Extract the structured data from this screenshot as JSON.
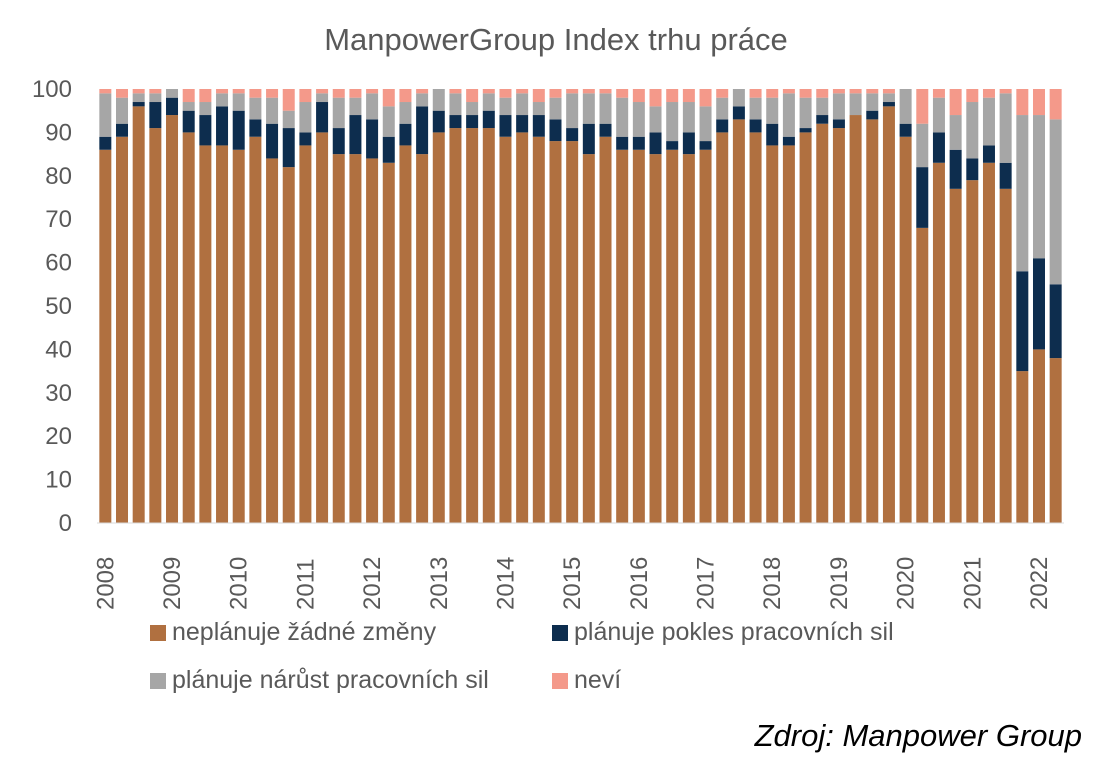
{
  "chart_data": {
    "type": "bar",
    "stacked": true,
    "title": "ManpowerGroup Index trhu práce",
    "ylim": [
      0,
      100
    ],
    "yticks": [
      0,
      10,
      20,
      30,
      40,
      50,
      60,
      70,
      80,
      90,
      100
    ],
    "xticks": [
      "2008",
      "2009",
      "2010",
      "2011",
      "2012",
      "2013",
      "2014",
      "2015",
      "2016",
      "2017",
      "2018",
      "2019",
      "2020",
      "2021",
      "2022"
    ],
    "categories": [
      "2008Q1",
      "2008Q2",
      "2008Q3",
      "2008Q4",
      "2009Q1",
      "2009Q2",
      "2009Q3",
      "2009Q4",
      "2010Q1",
      "2010Q2",
      "2010Q3",
      "2010Q4",
      "2011Q1",
      "2011Q2",
      "2011Q3",
      "2011Q4",
      "2012Q1",
      "2012Q2",
      "2012Q3",
      "2012Q4",
      "2013Q1",
      "2013Q2",
      "2013Q3",
      "2013Q4",
      "2014Q1",
      "2014Q2",
      "2014Q3",
      "2014Q4",
      "2015Q1",
      "2015Q2",
      "2015Q3",
      "2015Q4",
      "2016Q1",
      "2016Q2",
      "2016Q3",
      "2016Q4",
      "2017Q1",
      "2017Q2",
      "2017Q3",
      "2017Q4",
      "2018Q1",
      "2018Q2",
      "2018Q3",
      "2018Q4",
      "2019Q1",
      "2019Q2",
      "2019Q3",
      "2019Q4",
      "2020Q1",
      "2020Q2",
      "2020Q3",
      "2020Q4",
      "2021Q1",
      "2021Q2",
      "2021Q3",
      "2021Q4",
      "2022Q1",
      "2022Q2"
    ],
    "series": [
      {
        "name": "neplánuje žádné změny",
        "color": "#B07040",
        "values": [
          86,
          89,
          96,
          91,
          94,
          90,
          87,
          87,
          86,
          89,
          84,
          82,
          87,
          90,
          85,
          85,
          84,
          83,
          87,
          85,
          90,
          91,
          91,
          91,
          89,
          90,
          89,
          88,
          88,
          85,
          89,
          86,
          86,
          85,
          86,
          85,
          86,
          90,
          93,
          90,
          87,
          87,
          90,
          92,
          91,
          94,
          93,
          96,
          89,
          68,
          83,
          77,
          79,
          83,
          77,
          35,
          40,
          38
        ]
      },
      {
        "name": "plánuje pokles pracovních sil",
        "color": "#0D2D4E",
        "values": [
          3,
          3,
          1,
          6,
          4,
          5,
          7,
          9,
          9,
          4,
          8,
          9,
          3,
          7,
          6,
          9,
          9,
          6,
          5,
          11,
          5,
          3,
          3,
          4,
          5,
          4,
          5,
          5,
          3,
          7,
          3,
          3,
          3,
          5,
          2,
          5,
          2,
          3,
          3,
          3,
          5,
          2,
          1,
          2,
          2,
          0,
          2,
          1,
          3,
          14,
          7,
          9,
          5,
          4,
          6,
          23,
          21,
          17
        ]
      },
      {
        "name": "plánuje nárůst pracovních sil",
        "color": "#A6A6A6",
        "values": [
          10,
          6,
          2,
          2,
          2,
          2,
          3,
          3,
          4,
          5,
          6,
          4,
          7,
          2,
          7,
          4,
          6,
          7,
          5,
          3,
          5,
          5,
          3,
          4,
          4,
          5,
          3,
          5,
          8,
          7,
          7,
          9,
          8,
          6,
          9,
          7,
          8,
          5,
          4,
          5,
          6,
          10,
          7,
          4,
          6,
          5,
          4,
          2,
          8,
          10,
          8,
          8,
          13,
          11,
          16,
          36,
          33,
          38
        ]
      },
      {
        "name": "neví",
        "color": "#F4998A",
        "values": [
          1,
          2,
          1,
          1,
          0,
          3,
          3,
          1,
          1,
          2,
          2,
          5,
          3,
          1,
          2,
          2,
          1,
          4,
          3,
          1,
          0,
          1,
          3,
          1,
          2,
          1,
          3,
          2,
          1,
          1,
          1,
          2,
          3,
          4,
          3,
          3,
          4,
          2,
          0,
          2,
          2,
          1,
          2,
          2,
          1,
          1,
          1,
          1,
          0,
          8,
          2,
          6,
          3,
          2,
          1,
          6,
          6,
          7
        ]
      }
    ]
  },
  "source": "Zdroj: Manpower Group"
}
